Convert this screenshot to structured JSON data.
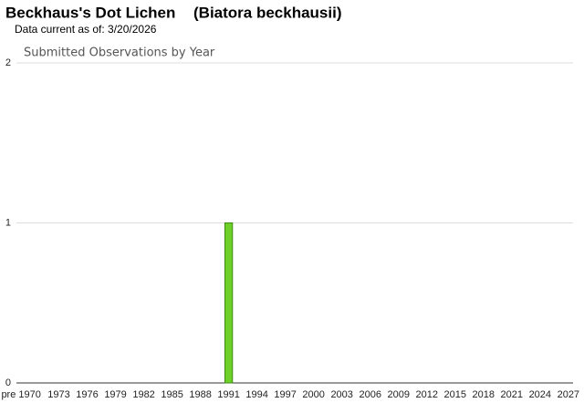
{
  "chart_data": {
    "type": "bar",
    "title": "Beckhaus's Dot Lichen",
    "scientific_name": "(Biatora beckhausii)",
    "subtitle": "Data current as of: 3/20/2026",
    "chart_title": "Submitted Observations by Year",
    "categories": [
      "pre 1970",
      null,
      null,
      null,
      "1973",
      null,
      null,
      "1976",
      null,
      null,
      "1979",
      null,
      null,
      "1982",
      null,
      null,
      "1985",
      null,
      null,
      "1988",
      null,
      null,
      "1991",
      null,
      null,
      "1994",
      null,
      null,
      "1997",
      null,
      null,
      "2000",
      null,
      null,
      "2003",
      null,
      null,
      "2006",
      null,
      null,
      "2009",
      null,
      null,
      "2012",
      null,
      null,
      "2015",
      null,
      null,
      "2018",
      null,
      null,
      "2021",
      null,
      null,
      "2024",
      null,
      null,
      "2027"
    ],
    "values": [
      0,
      0,
      0,
      0,
      0,
      0,
      0,
      0,
      0,
      0,
      0,
      0,
      0,
      0,
      0,
      0,
      0,
      0,
      0,
      0,
      0,
      0,
      1,
      0,
      0,
      0,
      0,
      0,
      0,
      0,
      0,
      0,
      0,
      0,
      0,
      0,
      0,
      0,
      0,
      0,
      0,
      0,
      0,
      0,
      0,
      0,
      0,
      0,
      0,
      0,
      0,
      0,
      0,
      0,
      0,
      0,
      0,
      0,
      0
    ],
    "color": "#6fd02a",
    "ylim": [
      0,
      2
    ],
    "yticks": [
      0,
      1,
      2
    ],
    "grid": true
  }
}
